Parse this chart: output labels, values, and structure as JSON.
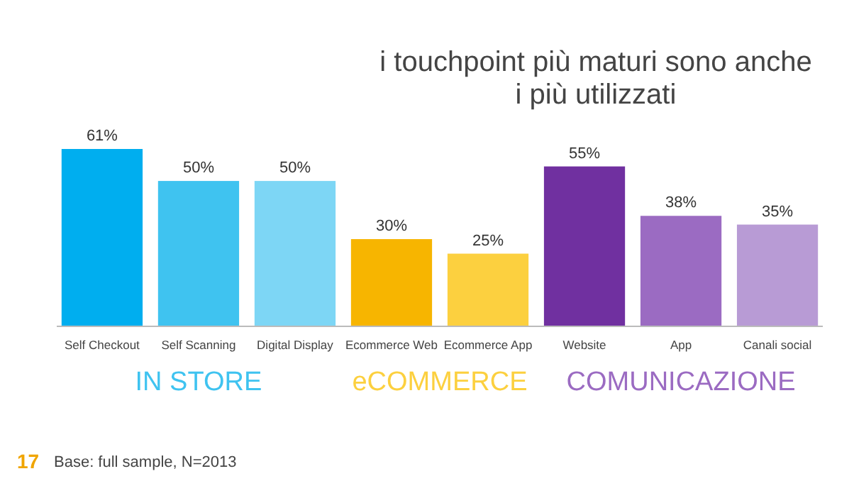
{
  "chart_data": {
    "type": "bar",
    "title": "i touchpoint più maturi sono anche i più utilizzati",
    "categories": [
      "Self Checkout",
      "Self Scanning",
      "Digital Display",
      "Ecommerce Web",
      "Ecommerce App",
      "Website",
      "App",
      "Canali social"
    ],
    "values": [
      61,
      50,
      50,
      30,
      25,
      55,
      38,
      35
    ],
    "colors": [
      "#00aeef",
      "#3fc3f0",
      "#7dd6f5",
      "#f7b500",
      "#fcd03f",
      "#7030a0",
      "#9b6bc2",
      "#b89bd5"
    ],
    "value_labels": [
      "61%",
      "50%",
      "50%",
      "30%",
      "25%",
      "55%",
      "38%",
      "35%"
    ],
    "annotations": [
      "IN STORE",
      "eCOMMERCE",
      "COMUNICAZIONE",
      "17",
      "Base: full sample, N=2013"
    ]
  }
}
